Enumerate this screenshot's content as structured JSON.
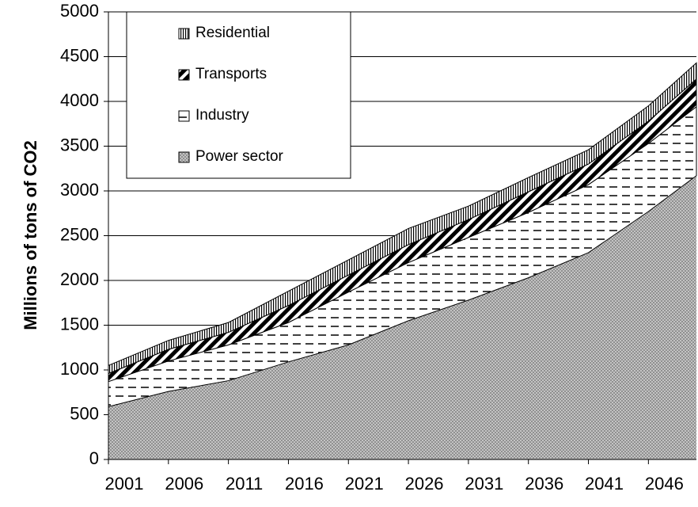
{
  "chart_data": {
    "type": "stacked_area",
    "y_label": "Millions of tons of CO2",
    "x": [
      2001,
      2006,
      2011,
      2016,
      2021,
      2026,
      2031,
      2036,
      2041,
      2046,
      2050
    ],
    "xlim": [
      2001,
      2050
    ],
    "xticks": [
      2001,
      2006,
      2011,
      2016,
      2021,
      2026,
      2031,
      2036,
      2041,
      2046
    ],
    "ylim": [
      0,
      5000
    ],
    "yticks": [
      0,
      500,
      1000,
      1500,
      2000,
      2500,
      3000,
      3500,
      4000,
      4500,
      5000
    ],
    "grid": true,
    "legend": "top-left",
    "series": [
      {
        "name": "Power sector",
        "color": "#9a9a9a",
        "pattern": "crosshatch",
        "values": [
          590,
          760,
          880,
          1090,
          1280,
          1550,
          1780,
          2030,
          2310,
          2770,
          3170
        ]
      },
      {
        "name": "Industry",
        "color": "#000000",
        "pattern": "dashes",
        "values": [
          280,
          340,
          400,
          440,
          590,
          650,
          700,
          730,
          760,
          760,
          770
        ]
      },
      {
        "name": "Transports",
        "color": "#000000",
        "pattern": "diagonal",
        "values": [
          90,
          130,
          140,
          190,
          190,
          200,
          200,
          230,
          230,
          250,
          310
        ]
      },
      {
        "name": "Residential",
        "color": "#000000",
        "pattern": "vertical",
        "values": [
          90,
          100,
          110,
          160,
          170,
          180,
          150,
          160,
          160,
          170,
          180
        ]
      }
    ]
  }
}
